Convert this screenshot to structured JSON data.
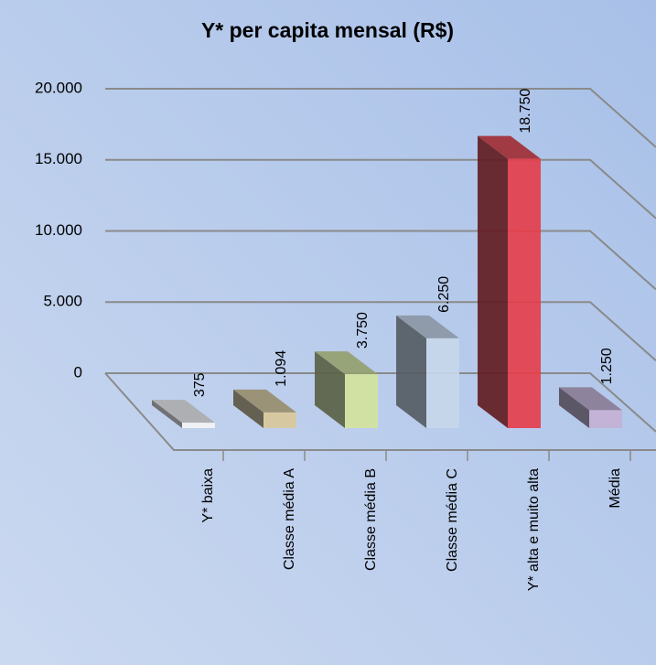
{
  "chart_data": {
    "type": "bar3d",
    "title": "Y* per capita mensal (R$)",
    "categories": [
      "Y* baixa",
      "Classe média A",
      "Classe média B",
      "Classe média C",
      "Y* alta e muito alta",
      "Média"
    ],
    "values": [
      375,
      1094,
      3750,
      6250,
      18750,
      1250
    ],
    "value_labels": [
      "375",
      "1.094",
      "3.750",
      "6.250",
      "18.750",
      "1.250"
    ],
    "colors": [
      "#f4f4f4",
      "#d8c898",
      "#d4e39c",
      "#c6d6ea",
      "#e63c48",
      "#c4b0d4"
    ],
    "ylim": [
      0,
      20000
    ],
    "yticks": [
      0,
      {
        "value": 5000,
        "label": "5.000"
      },
      {
        "value": 10000,
        "label": "10.000"
      },
      {
        "value": 15000,
        "label": "15.000"
      },
      {
        "value": 20000,
        "label": "20.000"
      }
    ],
    "grid": true
  }
}
